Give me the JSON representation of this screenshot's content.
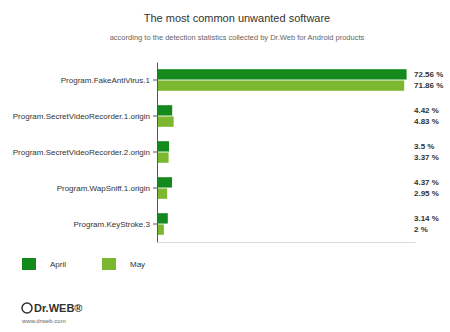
{
  "chart_data": {
    "type": "bar",
    "orientation": "horizontal",
    "title": "The most common unwanted software",
    "subtitle": "according to the detection statistics collected by Dr.Web for Android products",
    "categories": [
      "Program.FakeAntiVirus.1",
      "Program.SecretVideoRecorder.1.origin",
      "Program.SecretVideoRecorder.2.origin",
      "Program.WapSniff.1.origin",
      "Program.KeyStroke.3"
    ],
    "series": [
      {
        "name": "April",
        "color": "#138a1b",
        "values": [
          72.56,
          4.42,
          3.5,
          4.37,
          3.14
        ],
        "value_labels": [
          "72.56 %",
          "4.42 %",
          "3.5 %",
          "4.37 %",
          "3.14 %"
        ]
      },
      {
        "name": "May",
        "color": "#7cb82f",
        "values": [
          71.86,
          4.83,
          3.37,
          2.95,
          2
        ],
        "value_labels": [
          "71.86 %",
          "4.83 %",
          "3.37 %",
          "2.95 %",
          "2 %"
        ]
      }
    ],
    "xlim": [
      0,
      75
    ],
    "tick_labels": "y",
    "data_labels": true,
    "legend": "bottom-left",
    "annotations": [
      "Dr.WEB®",
      "www.drweb.com"
    ]
  }
}
